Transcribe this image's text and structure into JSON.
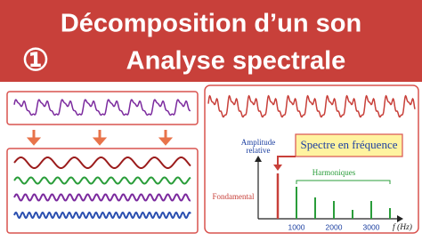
{
  "header": {
    "title": "Décomposition d’un son",
    "number": "①",
    "subtitle": "Analyse spectrale"
  },
  "spectrum": {
    "y_axis_label": [
      "Amplitude",
      "relative"
    ],
    "label": "Spectre en fréquence",
    "fundamental_label": "Fondamental",
    "harmonics_label": "Harmoniques",
    "x_ticks": [
      "1000",
      "2000",
      "3000"
    ],
    "x_axis_label": "f (Hz)"
  }
}
